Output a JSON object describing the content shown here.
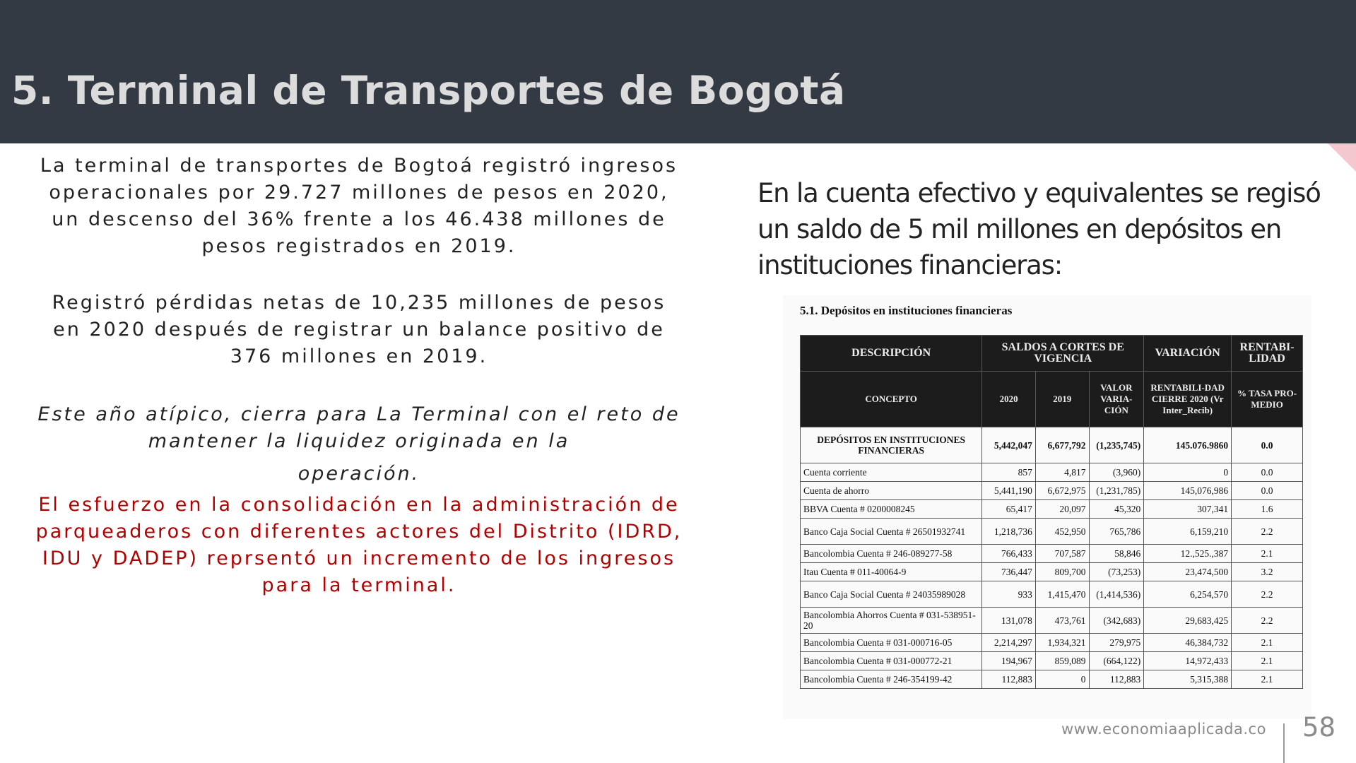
{
  "header": {
    "title": "5. Terminal de Transportes de Bogotá"
  },
  "left": {
    "p1": "La terminal de transportes de Bogtoá registró ingresos operacionales por  29.727 millones de pesos en 2020, un descenso del 36% frente a los 46.438 millones de pesos registrados en 2019.",
    "p2": "Registró pérdidas netas de 10,235 millones de pesos en 2020 después de registrar un balance positivo de 376 millones en 2019.",
    "p3_line1": "Este año atípico, cierra para La Terminal con el reto de mantener la liquidez originada en la",
    "p3_line2": "operación.",
    "p4": "El esfuerzo en la consolidación en la administración de parqueaderos con diferentes actores del Distrito (IDRD, IDU y DADEP) reprsentó un incremento de los ingresos para la terminal."
  },
  "right": {
    "text": "En la cuenta efectivo y equivalentes se regisó un saldo de 5 mil millones en depósitos en instituciones financieras:"
  },
  "table": {
    "title": "5.1.   Depósitos en instituciones financieras",
    "header_row1": [
      "DESCRIPCIÓN",
      "SALDOS A CORTES DE VIGENCIA",
      "VARIACIÓN",
      "RENTABI-LIDAD"
    ],
    "header_row2": [
      "CONCEPTO",
      "2020",
      "2019",
      "VALOR VARIA-CIÓN",
      "RENTABILI-DAD CIERRE 2020 (Vr Inter_Recib)",
      "% TASA PRO-MEDIO"
    ],
    "total": {
      "concept": "DEPÓSITOS EN INSTITUCIONES FINANCIERAS",
      "v2020": "5,442,047",
      "v2019": "6,677,792",
      "var": "(1,235,745)",
      "rent": "145.076.9860",
      "rate": "0.0"
    },
    "rows": [
      {
        "concept": "Cuenta corriente",
        "v2020": "857",
        "v2019": "4,817",
        "var": "(3,960)",
        "rent": "0",
        "rate": "0.0"
      },
      {
        "concept": "Cuenta de ahorro",
        "v2020": "5,441,190",
        "v2019": "6,672,975",
        "var": "(1,231,785)",
        "rent": "145,076,986",
        "rate": "0.0"
      },
      {
        "concept": "BBVA Cuenta # 0200008245",
        "v2020": "65,417",
        "v2019": "20,097",
        "var": "45,320",
        "rent": "307,341",
        "rate": "1.6"
      },
      {
        "concept": "Banco Caja Social Cuenta # 26501932741",
        "v2020": "1,218,736",
        "v2019": "452,950",
        "var": "765,786",
        "rent": "6,159,210",
        "rate": "2.2"
      },
      {
        "concept": "Bancolombia Cuenta # 246-089277-58",
        "v2020": "766,433",
        "v2019": "707,587",
        "var": "58,846",
        "rent": "12.,525.,387",
        "rate": "2.1"
      },
      {
        "concept": "Itau  Cuenta # 011-40064-9",
        "v2020": "736,447",
        "v2019": "809,700",
        "var": "(73,253)",
        "rent": "23,474,500",
        "rate": "3.2"
      },
      {
        "concept": "Banco Caja Social Cuenta # 24035989028",
        "v2020": "933",
        "v2019": "1,415,470",
        "var": "(1,414,536)",
        "rent": "6,254,570",
        "rate": "2.2"
      },
      {
        "concept": "Bancolombia Ahorros Cuenta # 031-538951-20",
        "v2020": "131,078",
        "v2019": "473,761",
        "var": "(342,683)",
        "rent": "29,683,425",
        "rate": "2.2"
      },
      {
        "concept": "Bancolombia Cuenta # 031-000716-05",
        "v2020": "2,214,297",
        "v2019": "1,934,321",
        "var": "279,975",
        "rent": "46,384,732",
        "rate": "2.1"
      },
      {
        "concept": "Bancolombia Cuenta # 031-000772-21",
        "v2020": "194,967",
        "v2019": "859,089",
        "var": "(664,122)",
        "rent": "14,972,433",
        "rate": "2.1"
      },
      {
        "concept": "Bancolombia Cuenta # 246-354199-42",
        "v2020": "112,883",
        "v2019": "0",
        "var": "112,883",
        "rent": "5,315,388",
        "rate": "2.1"
      }
    ]
  },
  "footer": {
    "url": "www.economiaaplicada.co",
    "page": "58"
  }
}
